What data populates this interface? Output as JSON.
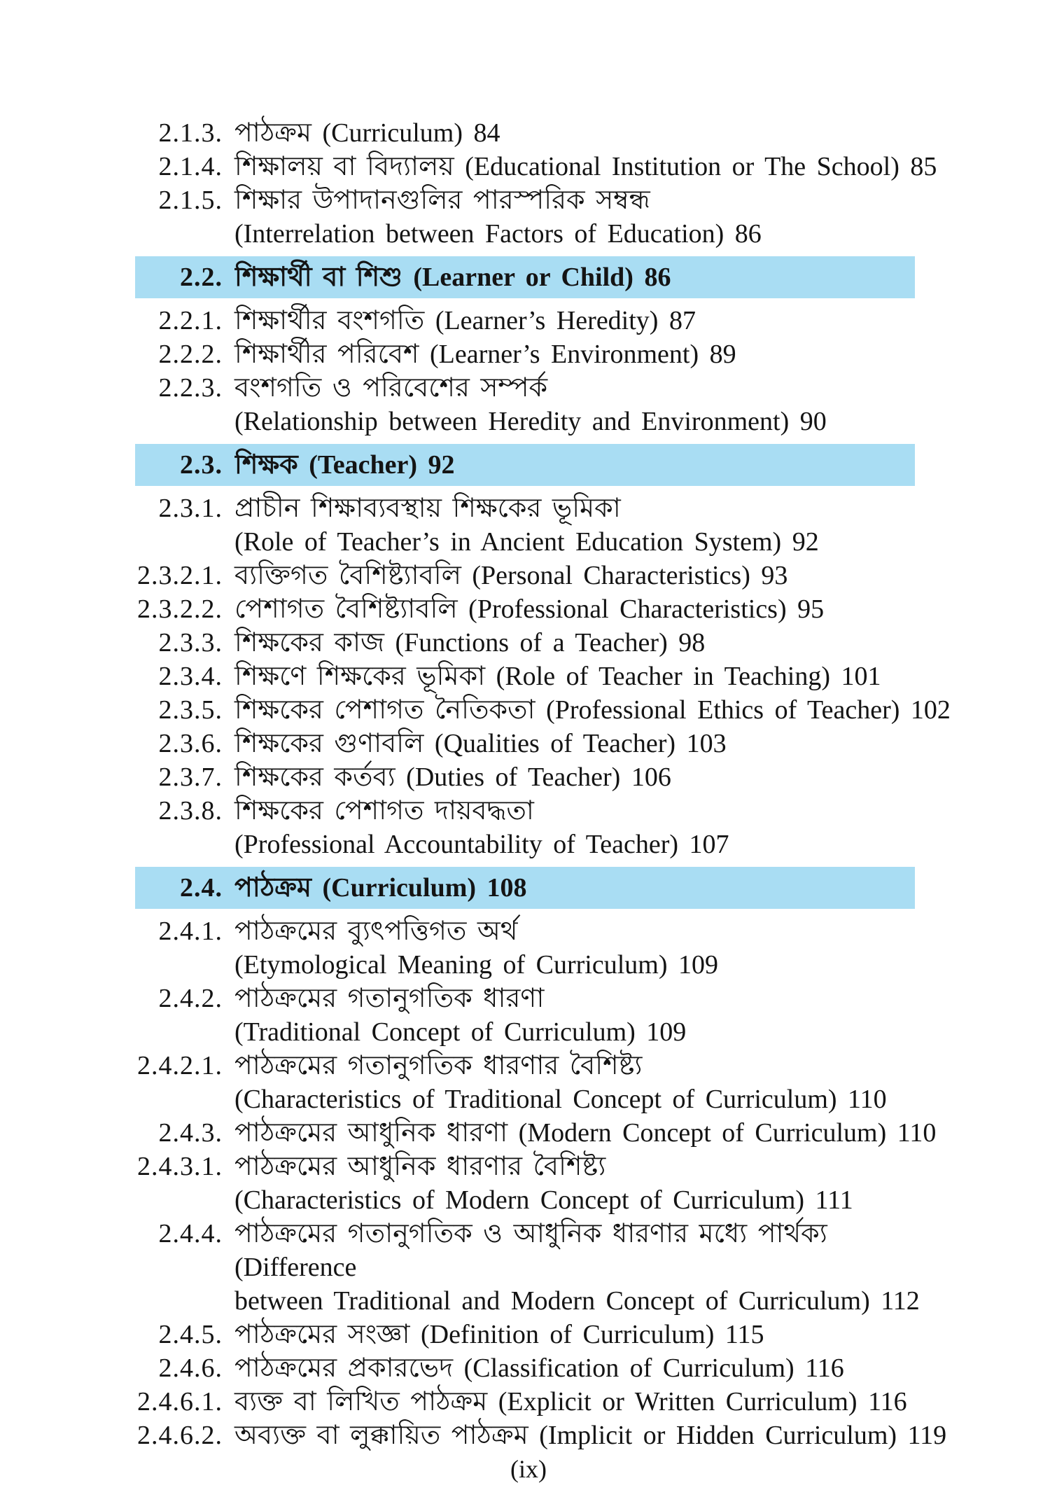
{
  "page": {
    "footer": "(ix)",
    "highlight_color": "#a9ddf3",
    "text_color": "#141414"
  },
  "toc": {
    "entries": [
      {
        "number": "2.1.3.",
        "highlight": false,
        "lines": [
          "পাঠক্রম (Curriculum) 84"
        ]
      },
      {
        "number": "2.1.4.",
        "highlight": false,
        "lines": [
          "শিক্ষালয় বা বিদ্যালয় (Educational Institution or The School) 85"
        ]
      },
      {
        "number": "2.1.5.",
        "highlight": false,
        "lines": [
          "শিক্ষার উপাদানগুলির পারস্পরিক সম্বন্ধ",
          "(Interrelation between Factors of Education) 86"
        ]
      },
      {
        "number": "2.2.",
        "highlight": true,
        "lines": [
          "শিক্ষার্থী বা শিশু (Learner or Child) 86"
        ]
      },
      {
        "number": "2.2.1.",
        "highlight": false,
        "lines": [
          "শিক্ষার্থীর বংশগতি (Learner’s Heredity) 87"
        ]
      },
      {
        "number": "2.2.2.",
        "highlight": false,
        "lines": [
          "শিক্ষার্থীর পরিবেশ (Learner’s Environment) 89"
        ]
      },
      {
        "number": "2.2.3.",
        "highlight": false,
        "lines": [
          "বংশগতি ও পরিবেশের সম্পর্ক",
          "(Relationship between Heredity and Environment) 90"
        ]
      },
      {
        "number": "2.3.",
        "highlight": true,
        "lines": [
          "শিক্ষক (Teacher) 92"
        ]
      },
      {
        "number": "2.3.1.",
        "highlight": false,
        "lines": [
          "প্রাচীন শিক্ষাব্যবস্থায় শিক্ষকের ভূমিকা",
          "(Role of Teacher’s in Ancient Education System) 92"
        ]
      },
      {
        "number": "2.3.2.1.",
        "highlight": false,
        "lines": [
          "ব্যক্তিগত বৈশিষ্ট্যাবলি (Personal Characteristics) 93"
        ]
      },
      {
        "number": "2.3.2.2.",
        "highlight": false,
        "lines": [
          "পেশাগত বৈশিষ্ট্যাবলি (Professional Characteristics) 95"
        ]
      },
      {
        "number": "2.3.3.",
        "highlight": false,
        "lines": [
          "শিক্ষকের কাজ (Functions of a Teacher) 98"
        ]
      },
      {
        "number": "2.3.4.",
        "highlight": false,
        "lines": [
          "শিক্ষণে শিক্ষকের ভূমিকা (Role of Teacher in Teaching) 101"
        ]
      },
      {
        "number": "2.3.5.",
        "highlight": false,
        "lines": [
          "শিক্ষকের পেশাগত নৈতিকতা (Professional Ethics of Teacher) 102"
        ]
      },
      {
        "number": "2.3.6.",
        "highlight": false,
        "lines": [
          "শিক্ষকের গুণাবলি (Qualities of Teacher) 103"
        ]
      },
      {
        "number": "2.3.7.",
        "highlight": false,
        "lines": [
          "শিক্ষকের কর্তব্য (Duties of Teacher) 106"
        ]
      },
      {
        "number": "2.3.8.",
        "highlight": false,
        "lines": [
          "শিক্ষকের পেশাগত দায়বদ্ধতা",
          "(Professional Accountability of Teacher) 107"
        ]
      },
      {
        "number": "2.4.",
        "highlight": true,
        "lines": [
          "পাঠক্রম (Curriculum) 108"
        ]
      },
      {
        "number": "2.4.1.",
        "highlight": false,
        "lines": [
          "পাঠক্রমের ব্যুৎপত্তিগত অর্থ",
          "(Etymological Meaning of Curriculum) 109"
        ]
      },
      {
        "number": "2.4.2.",
        "highlight": false,
        "lines": [
          "পাঠক্রমের গতানুগতিক ধারণা",
          "(Traditional Concept of Curriculum) 109"
        ]
      },
      {
        "number": "2.4.2.1.",
        "highlight": false,
        "lines": [
          "পাঠক্রমের গতানুগতিক ধারণার বৈশিষ্ট্য",
          "(Characteristics of Traditional Concept of Curriculum) 110"
        ]
      },
      {
        "number": "2.4.3.",
        "highlight": false,
        "lines": [
          "পাঠক্রমের আধুনিক ধারণা (Modern Concept of Curriculum) 110"
        ]
      },
      {
        "number": "2.4.3.1.",
        "highlight": false,
        "lines": [
          "পাঠক্রমের আধুনিক ধারণার বৈশিষ্ট্য",
          "(Characteristics of Modern Concept of Curriculum) 111"
        ]
      },
      {
        "number": "2.4.4.",
        "highlight": false,
        "lines": [
          "পাঠক্রমের গতানুগতিক ও আধুনিক ধারণার মধ্যে পার্থক্য (Difference",
          "between Traditional and Modern Concept of Curriculum) 112"
        ]
      },
      {
        "number": "2.4.5.",
        "highlight": false,
        "lines": [
          "পাঠক্রমের সংজ্ঞা (Definition of Curriculum) 115"
        ]
      },
      {
        "number": "2.4.6.",
        "highlight": false,
        "lines": [
          "পাঠক্রমের প্রকারভেদ (Classification of Curriculum) 116"
        ]
      },
      {
        "number": "2.4.6.1.",
        "highlight": false,
        "lines": [
          "ব্যক্ত বা লিখিত পাঠক্রম (Explicit or Written Curriculum) 116"
        ]
      },
      {
        "number": "2.4.6.2.",
        "highlight": false,
        "lines": [
          "অব্যক্ত বা লুক্কায়িত পাঠক্রম (Implicit or Hidden Curriculum) 119"
        ]
      }
    ]
  }
}
